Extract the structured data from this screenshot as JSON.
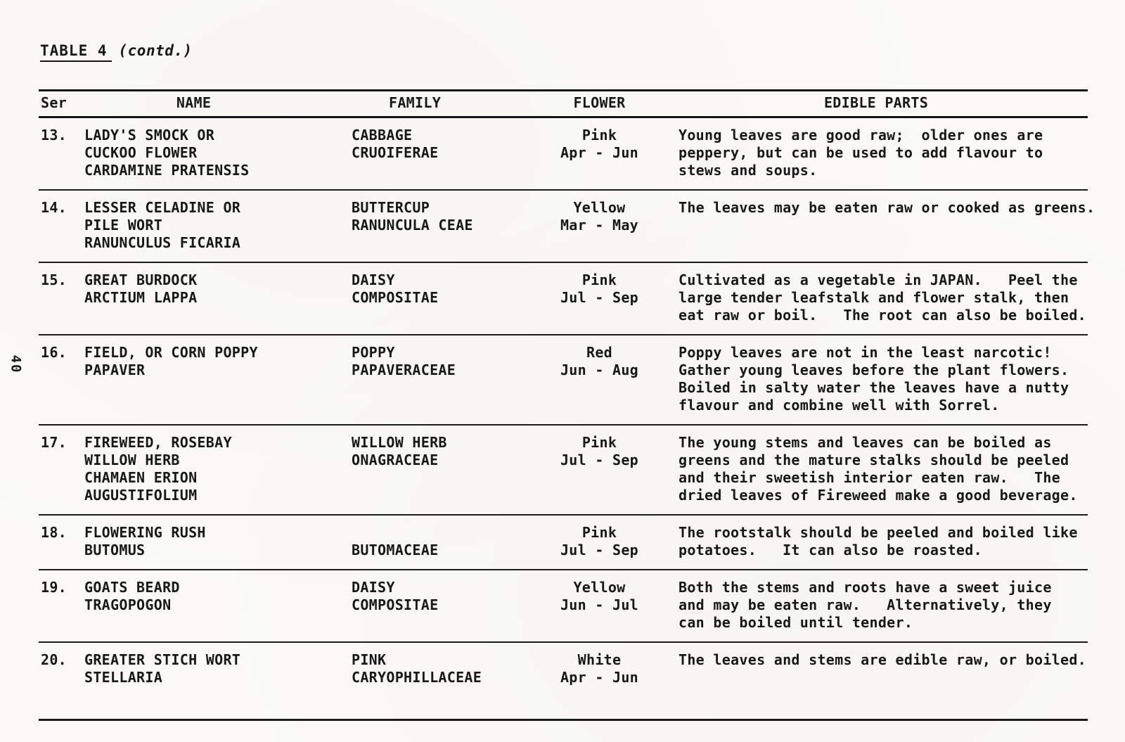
{
  "page": {
    "title": "TABLE 4",
    "title_suffix": "(contd.)",
    "page_number": "40"
  },
  "table": {
    "headers": {
      "ser": "Ser",
      "name": "NAME",
      "family": "FAMILY",
      "flower": "FLOWER",
      "edible": "EDIBLE PARTS"
    },
    "rows": [
      {
        "ser": "13.",
        "name": [
          "LADY'S SMOCK OR",
          "CUCKOO FLOWER",
          "CARDAMINE PRATENSIS"
        ],
        "family": [
          "CABBAGE",
          "CRUOIFERAE"
        ],
        "flower": [
          "Pink",
          "Apr - Jun"
        ],
        "edible": [
          "Young leaves are good raw;  older ones are",
          "peppery, but can be used to add flavour to",
          "stews and soups."
        ]
      },
      {
        "ser": "14.",
        "name": [
          "LESSER CELADINE OR",
          "PILE WORT",
          "RANUNCULUS FICARIA"
        ],
        "family": [
          "BUTTERCUP",
          "RANUNCULA CEAE"
        ],
        "flower": [
          "Yellow",
          "Mar - May"
        ],
        "edible": [
          "The leaves may be eaten raw or cooked as greens."
        ]
      },
      {
        "ser": "15.",
        "name": [
          "GREAT BURDOCK",
          "ARCTIUM LAPPA"
        ],
        "family": [
          "DAISY",
          "COMPOSITAE"
        ],
        "flower": [
          "Pink",
          "Jul - Sep"
        ],
        "edible": [
          "Cultivated as a vegetable in JAPAN.   Peel the",
          "large tender leafstalk and flower stalk, then",
          "eat raw or boil.   The root can also be boiled."
        ]
      },
      {
        "ser": "16.",
        "name": [
          "FIELD, OR CORN POPPY",
          "PAPAVER"
        ],
        "family": [
          "POPPY",
          "PAPAVERACEAE"
        ],
        "flower": [
          "Red",
          "Jun - Aug"
        ],
        "edible": [
          "Poppy leaves are not in the least narcotic!",
          "Gather young leaves before the plant flowers.",
          "Boiled in salty water the leaves have a nutty",
          "flavour and combine well with Sorrel."
        ]
      },
      {
        "ser": "17.",
        "name": [
          "FIREWEED, ROSEBAY",
          "WILLOW HERB",
          "CHAMAEN ERION",
          "AUGUSTIFOLIUM"
        ],
        "family": [
          "WILLOW HERB",
          "ONAGRACEAE"
        ],
        "flower": [
          "Pink",
          "Jul - Sep"
        ],
        "edible": [
          "The young stems and leaves can be boiled as",
          "greens and the mature stalks should be peeled",
          "and their sweetish interior eaten raw.   The",
          "dried leaves of Fireweed make a good beverage."
        ]
      },
      {
        "ser": "18.",
        "name": [
          "FLOWERING RUSH",
          "BUTOMUS"
        ],
        "family": [
          "",
          "BUTOMACEAE"
        ],
        "flower": [
          "Pink",
          "Jul - Sep"
        ],
        "edible": [
          "The rootstalk should be peeled and boiled like",
          "potatoes.   It can also be roasted."
        ]
      },
      {
        "ser": "19.",
        "name": [
          "GOATS BEARD",
          "TRAGOPOGON"
        ],
        "family": [
          "DAISY",
          "COMPOSITAE"
        ],
        "flower": [
          "Yellow",
          "Jun - Jul"
        ],
        "edible": [
          "Both the stems and roots have a sweet juice",
          "and may be eaten raw.   Alternatively, they",
          "can be boiled until tender."
        ]
      },
      {
        "ser": "20.",
        "name": [
          "GREATER STICH WORT",
          "STELLARIA"
        ],
        "family": [
          "PINK",
          "CARYOPHILLACEAE"
        ],
        "flower": [
          "White",
          "Apr - Jun"
        ],
        "edible": [
          "The leaves and stems are edible raw, or boiled."
        ]
      }
    ]
  }
}
